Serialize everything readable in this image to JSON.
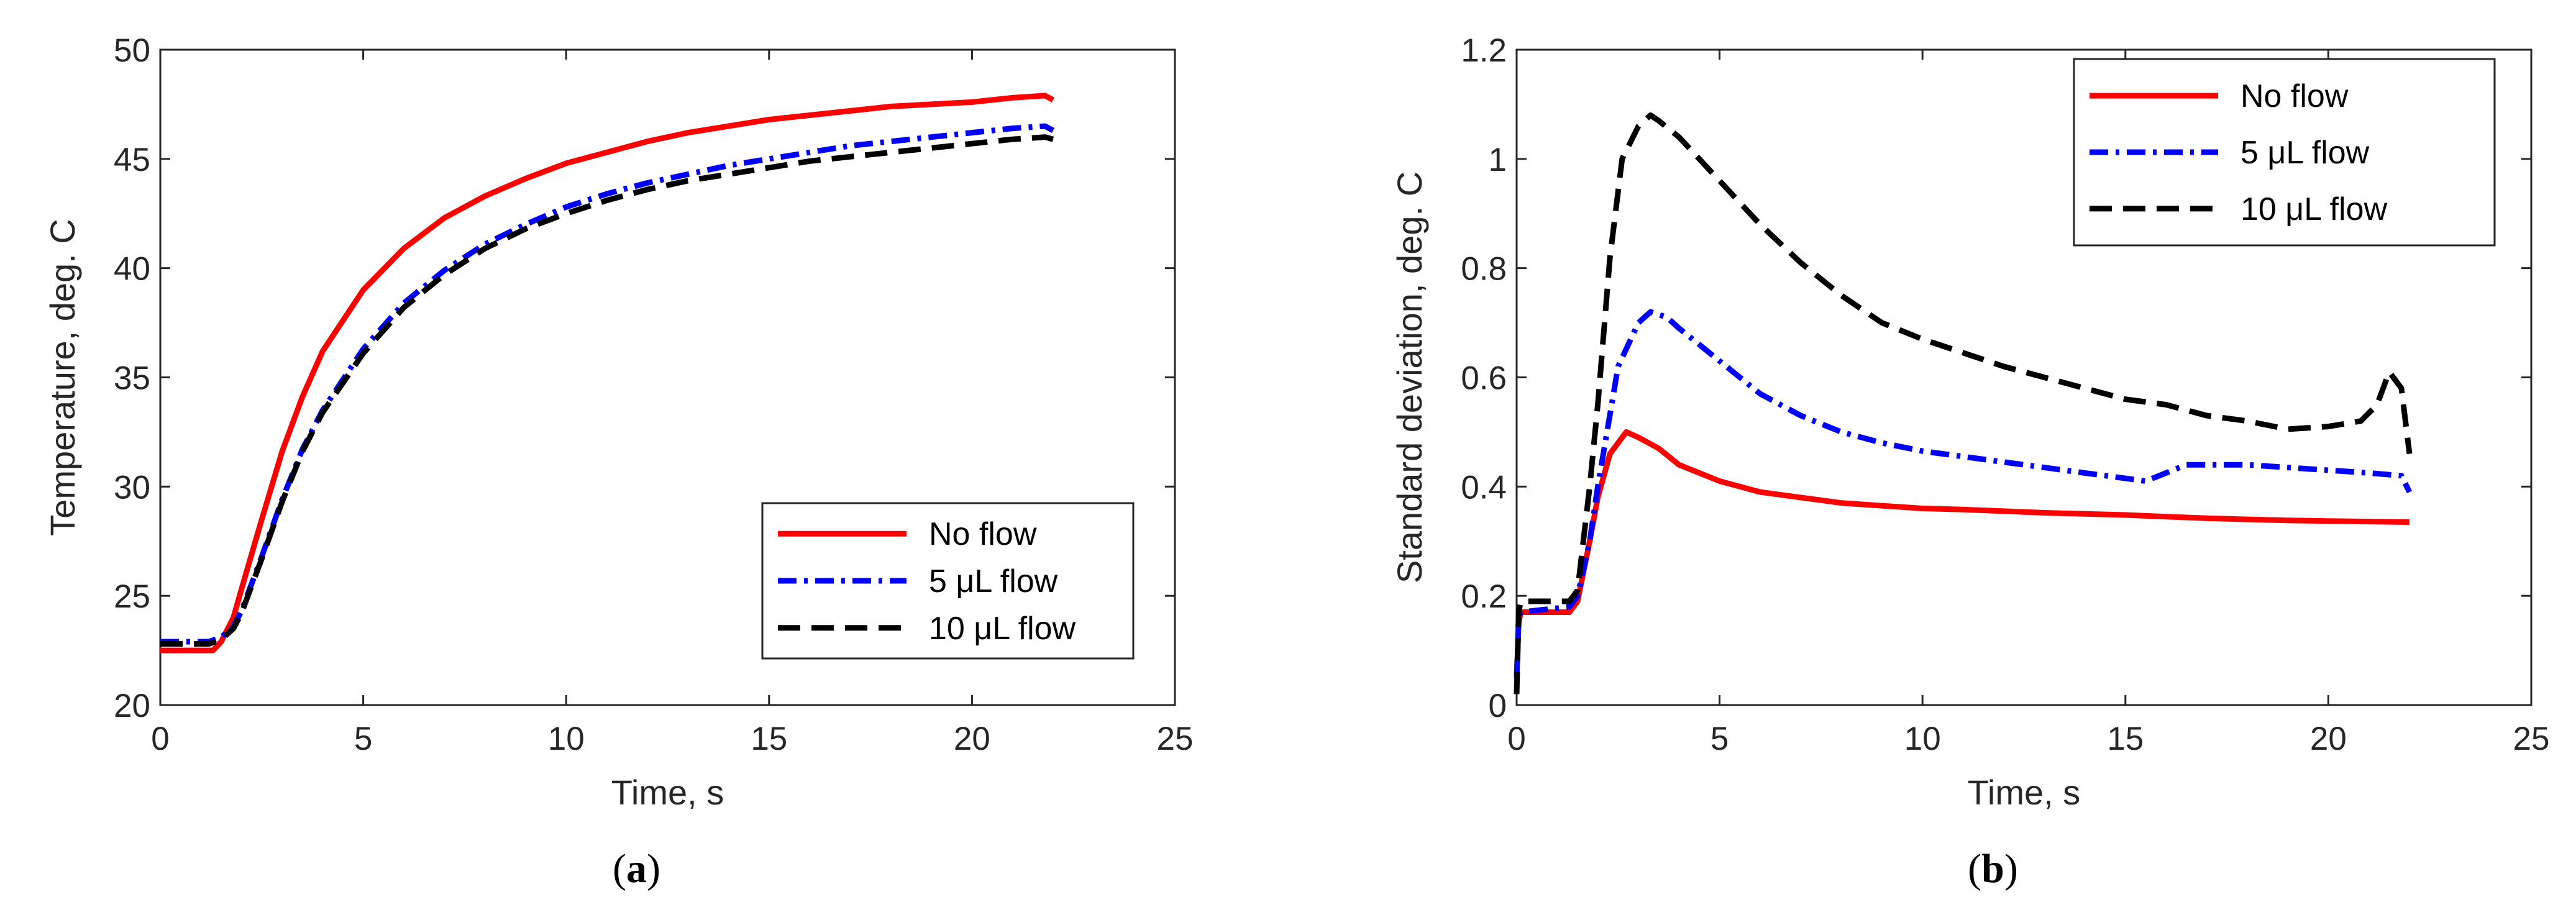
{
  "chart_data": [
    {
      "panel": "(a)",
      "panel_label": {
        "open": "(",
        "letter": "a",
        "close": ")"
      },
      "type": "line",
      "xlabel": "Time, s",
      "ylabel": "Temperature, deg. C",
      "xlim": [
        0,
        25
      ],
      "ylim": [
        20,
        50
      ],
      "xticks": [
        0,
        5,
        10,
        15,
        20,
        25
      ],
      "yticks": [
        20,
        25,
        30,
        35,
        40,
        45,
        50
      ],
      "grid": false,
      "legend_position": "bottom-right",
      "series": [
        {
          "name": "No flow",
          "color": "#ff0000",
          "dash": "solid",
          "x": [
            0,
            1.3,
            1.5,
            1.8,
            2.0,
            2.5,
            3.0,
            3.5,
            4.0,
            5.0,
            6.0,
            7.0,
            8.0,
            9.0,
            10.0,
            11.0,
            12.0,
            13.0,
            14.0,
            15.0,
            16.0,
            17.0,
            18.0,
            19.0,
            20.0,
            21.0,
            21.8,
            22.0
          ],
          "y": [
            22.5,
            22.5,
            22.9,
            24.0,
            25.3,
            28.5,
            31.6,
            34.1,
            36.2,
            39.0,
            40.9,
            42.3,
            43.3,
            44.1,
            44.8,
            45.3,
            45.8,
            46.2,
            46.5,
            46.8,
            47.0,
            47.2,
            47.4,
            47.5,
            47.6,
            47.8,
            47.9,
            47.7
          ]
        },
        {
          "name": "5 μL flow",
          "color": "#0000ff",
          "dash": "dashdot",
          "x": [
            0,
            1.2,
            1.5,
            1.8,
            2.0,
            2.5,
            3.0,
            3.5,
            4.0,
            5.0,
            6.0,
            7.0,
            8.0,
            9.0,
            10.0,
            11.0,
            12.0,
            13.0,
            14.0,
            15.0,
            16.0,
            17.0,
            18.0,
            19.0,
            20.0,
            21.0,
            21.8,
            22.0
          ],
          "y": [
            22.9,
            22.9,
            23.1,
            23.6,
            24.3,
            26.8,
            29.4,
            31.7,
            33.5,
            36.3,
            38.4,
            39.9,
            41.1,
            42.0,
            42.8,
            43.4,
            43.9,
            44.3,
            44.7,
            45.0,
            45.3,
            45.6,
            45.8,
            46.0,
            46.2,
            46.4,
            46.5,
            46.3
          ]
        },
        {
          "name": "10 μL flow",
          "color": "#000000",
          "dash": "dash",
          "x": [
            0,
            1.2,
            1.5,
            1.8,
            2.0,
            2.5,
            3.0,
            3.5,
            4.0,
            5.0,
            6.0,
            7.0,
            8.0,
            9.0,
            10.0,
            11.0,
            12.0,
            13.0,
            14.0,
            15.0,
            16.0,
            17.0,
            18.0,
            19.0,
            20.0,
            21.0,
            21.8,
            22.0
          ],
          "y": [
            22.8,
            22.8,
            23.0,
            23.5,
            24.2,
            26.7,
            29.3,
            31.6,
            33.4,
            36.1,
            38.2,
            39.7,
            40.9,
            41.8,
            42.5,
            43.1,
            43.6,
            44.0,
            44.3,
            44.6,
            44.9,
            45.1,
            45.3,
            45.5,
            45.7,
            45.9,
            46.0,
            45.9
          ]
        }
      ]
    },
    {
      "panel": "(b)",
      "panel_label": {
        "open": "(",
        "letter": "b",
        "close": ")"
      },
      "type": "line",
      "xlabel": "Time, s",
      "ylabel": "Standard deviation, deg. C",
      "xlim": [
        0,
        25
      ],
      "ylim": [
        0,
        1.2
      ],
      "xticks": [
        0,
        5,
        10,
        15,
        20,
        25
      ],
      "yticks": [
        0,
        0.2,
        0.4,
        0.6,
        0.8,
        1,
        1.2
      ],
      "grid": false,
      "legend_position": "top-right",
      "series": [
        {
          "name": "No flow",
          "color": "#ff0000",
          "dash": "solid",
          "x": [
            0,
            0.05,
            0.1,
            1.3,
            1.5,
            1.8,
            2.0,
            2.3,
            2.7,
            3.0,
            3.5,
            4.0,
            5.0,
            6.0,
            7.0,
            8.0,
            9.0,
            10.0,
            11.0,
            12.0,
            13.0,
            14.0,
            15.0,
            16.0,
            17.0,
            18.0,
            19.0,
            20.0,
            21.0,
            22.0
          ],
          "y": [
            0.05,
            0.15,
            0.17,
            0.17,
            0.19,
            0.3,
            0.38,
            0.46,
            0.5,
            0.49,
            0.47,
            0.44,
            0.41,
            0.39,
            0.38,
            0.37,
            0.365,
            0.36,
            0.358,
            0.355,
            0.352,
            0.35,
            0.348,
            0.345,
            0.342,
            0.34,
            0.338,
            0.337,
            0.336,
            0.335
          ]
        },
        {
          "name": "5 μL flow",
          "color": "#0000ff",
          "dash": "dashdot",
          "x": [
            0,
            0.05,
            0.1,
            1.3,
            1.5,
            1.8,
            2.0,
            2.5,
            3.0,
            3.3,
            3.7,
            4.0,
            5.0,
            6.0,
            7.0,
            8.0,
            9.0,
            10.0,
            11.0,
            12.0,
            13.0,
            14.0,
            15.0,
            15.5,
            16.0,
            16.5,
            17.0,
            18.0,
            19.0,
            20.0,
            21.0,
            21.8,
            22.0
          ],
          "y": [
            0.05,
            0.16,
            0.17,
            0.18,
            0.2,
            0.3,
            0.4,
            0.62,
            0.7,
            0.72,
            0.71,
            0.69,
            0.63,
            0.57,
            0.53,
            0.5,
            0.48,
            0.465,
            0.455,
            0.445,
            0.435,
            0.425,
            0.415,
            0.41,
            0.425,
            0.44,
            0.44,
            0.44,
            0.435,
            0.43,
            0.425,
            0.42,
            0.39
          ]
        },
        {
          "name": "10 μL flow",
          "color": "#000000",
          "dash": "dash",
          "x": [
            0,
            0.05,
            0.1,
            1.3,
            1.5,
            1.8,
            2.0,
            2.3,
            2.6,
            3.0,
            3.3,
            3.5,
            4.0,
            5.0,
            6.0,
            7.0,
            8.0,
            9.0,
            10.0,
            11.0,
            12.0,
            13.0,
            14.0,
            15.0,
            16.0,
            17.0,
            18.0,
            19.0,
            20.0,
            20.8,
            21.2,
            21.5,
            21.8,
            22.0
          ],
          "y": [
            0.02,
            0.17,
            0.19,
            0.19,
            0.21,
            0.4,
            0.55,
            0.82,
            1.0,
            1.06,
            1.08,
            1.07,
            1.04,
            0.96,
            0.88,
            0.81,
            0.75,
            0.7,
            0.67,
            0.645,
            0.62,
            0.6,
            0.58,
            0.56,
            0.55,
            0.53,
            0.52,
            0.505,
            0.51,
            0.52,
            0.55,
            0.61,
            0.58,
            0.46
          ]
        }
      ]
    }
  ]
}
